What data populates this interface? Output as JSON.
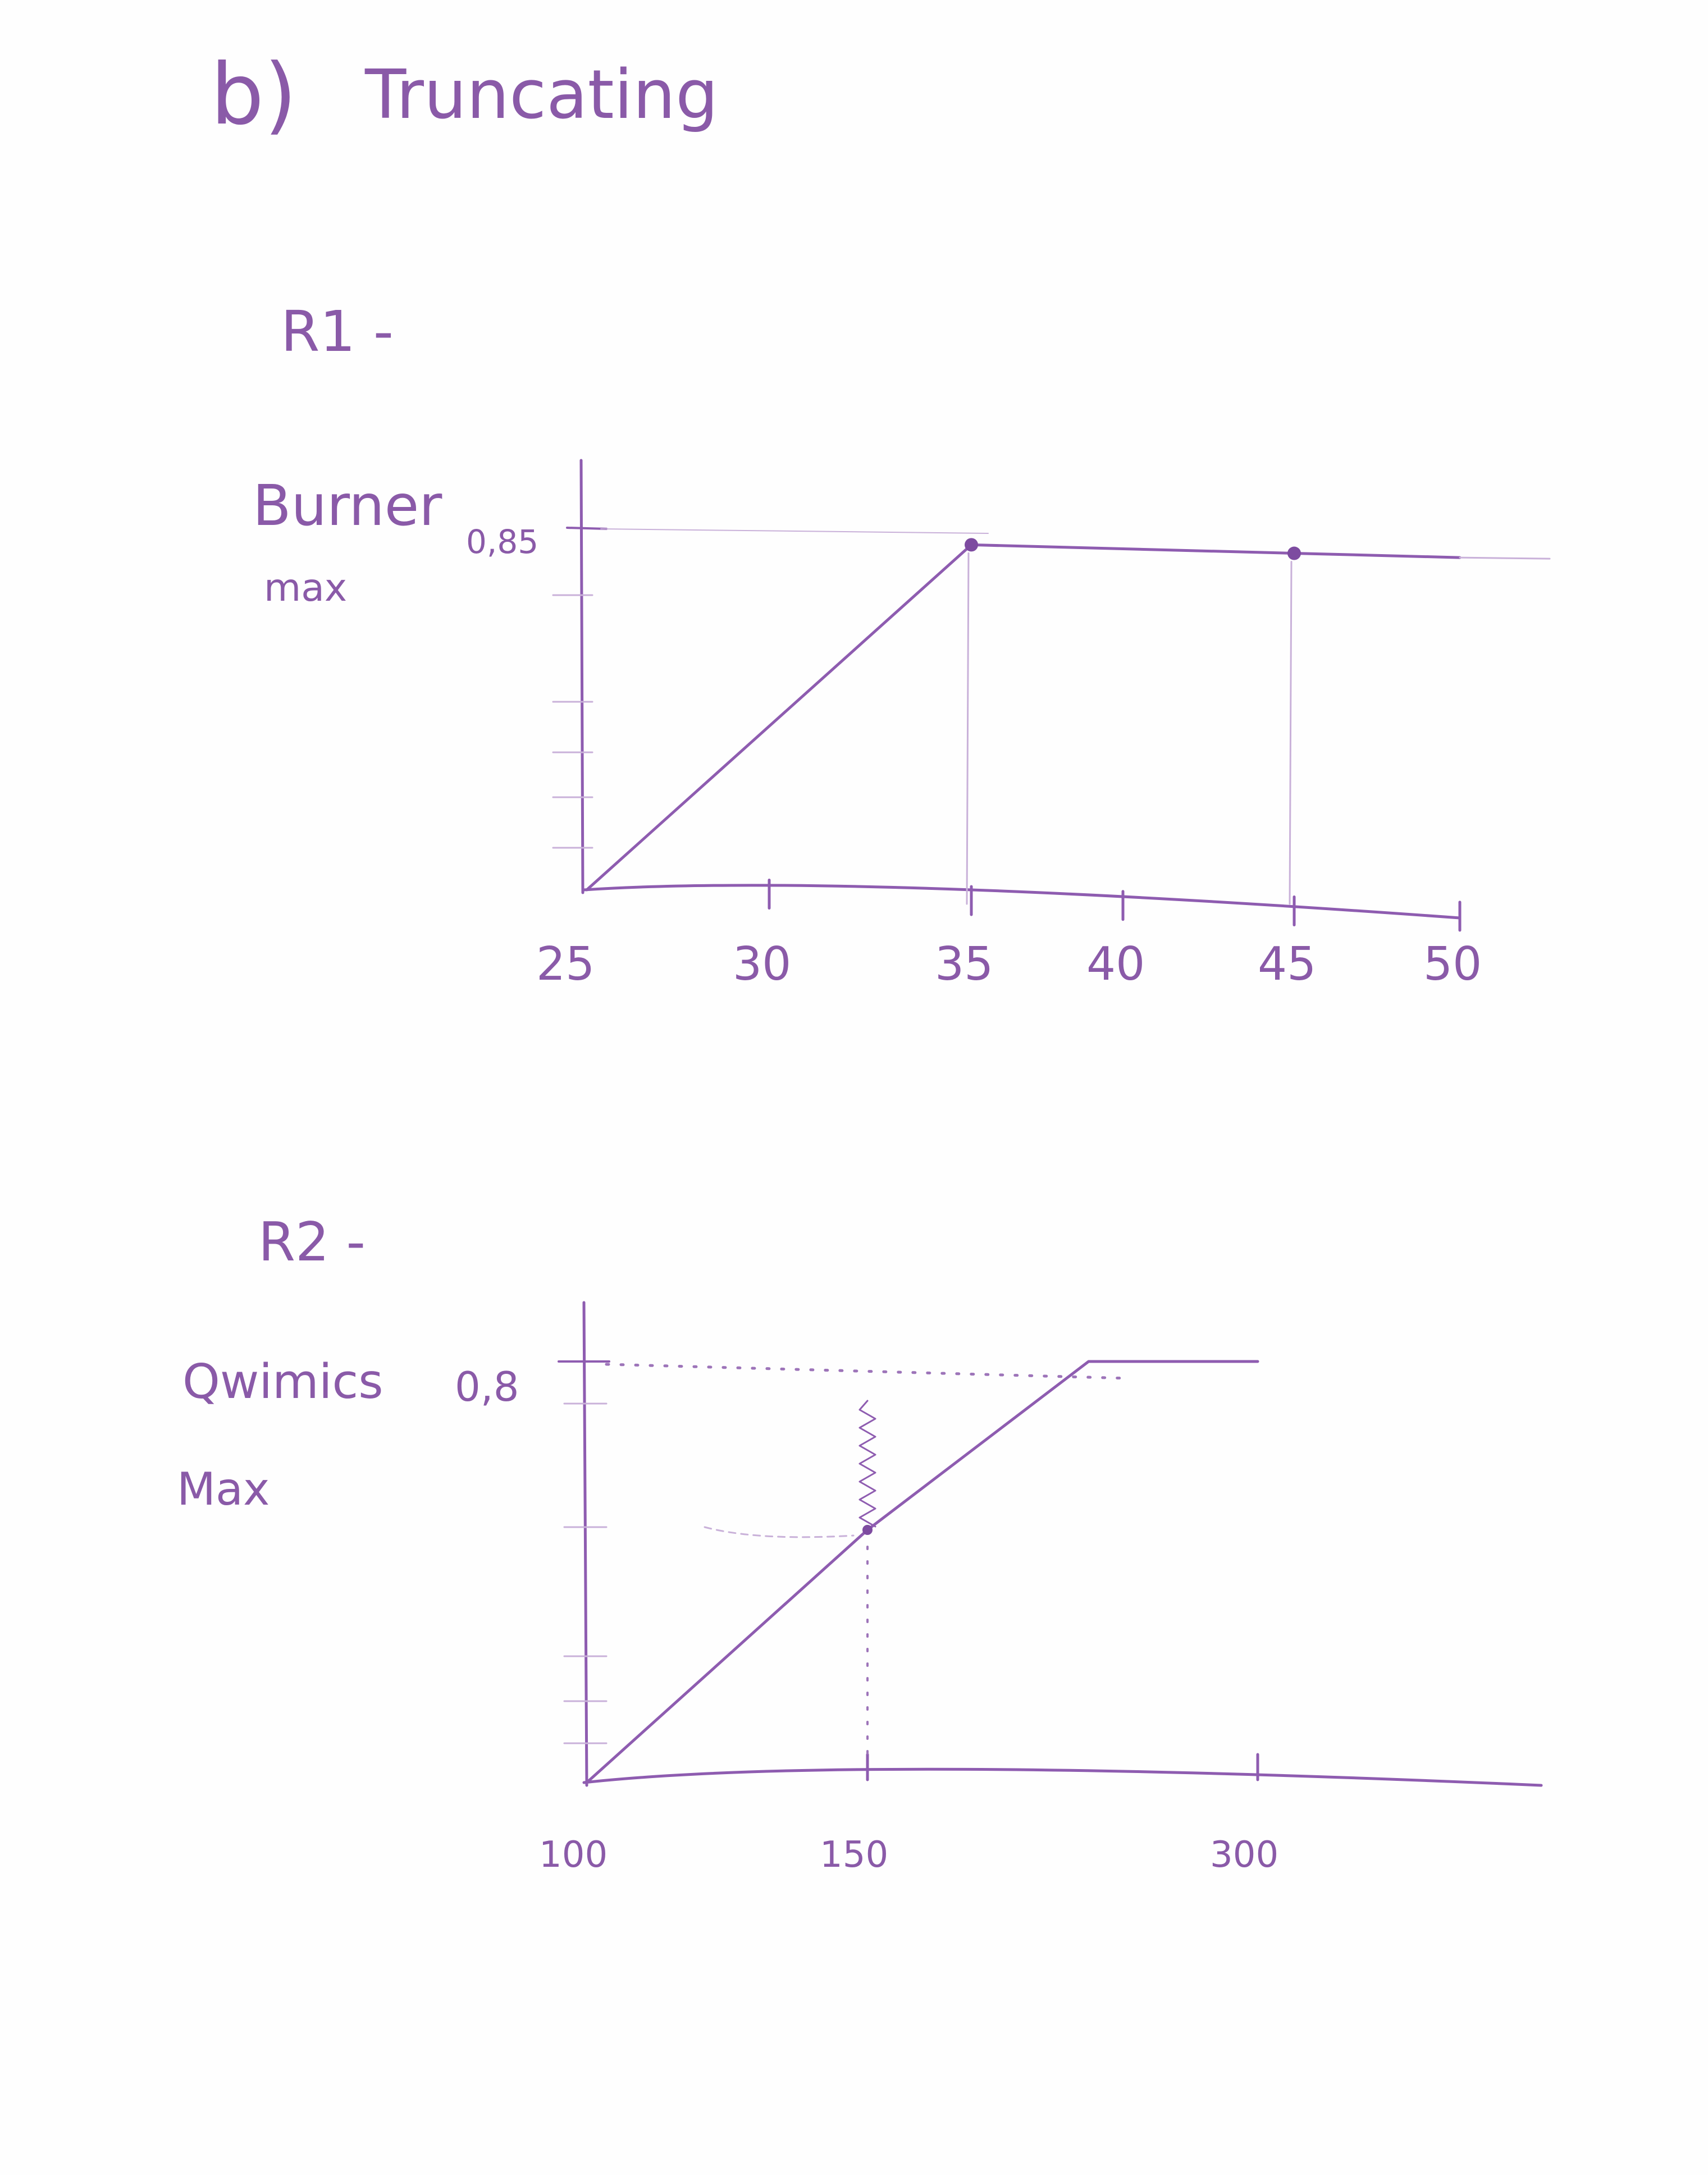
{
  "page": {
    "heading_letter": "b)",
    "heading_text": "Truncating",
    "ink_color": "#8e5cb0"
  },
  "chart_data": [
    {
      "type": "line",
      "label": "R1 -",
      "ylabel": "Burner max",
      "y_tick_labels": [
        "0,85"
      ],
      "x_tick_labels": [
        "25",
        "30",
        "35",
        "40",
        "45",
        "50"
      ],
      "x": [
        25,
        35,
        45,
        50
      ],
      "y": [
        0,
        0.81,
        0.79,
        0.78
      ],
      "xlim": [
        25,
        50
      ],
      "ylim": [
        0,
        0.85
      ],
      "markers_at_x": [
        35,
        45
      ],
      "grid": false
    },
    {
      "type": "line",
      "label": "R2 -",
      "ylabel": "Qwimics Max",
      "y_tick_labels": [
        "0,8"
      ],
      "x_tick_labels": [
        "100",
        "150",
        "300"
      ],
      "x": [
        100,
        150,
        235,
        300
      ],
      "y": [
        0,
        0.48,
        0.8,
        0.8
      ],
      "ylim": [
        0,
        0.8
      ],
      "markers_at_x": [
        150
      ],
      "grid": false
    }
  ]
}
